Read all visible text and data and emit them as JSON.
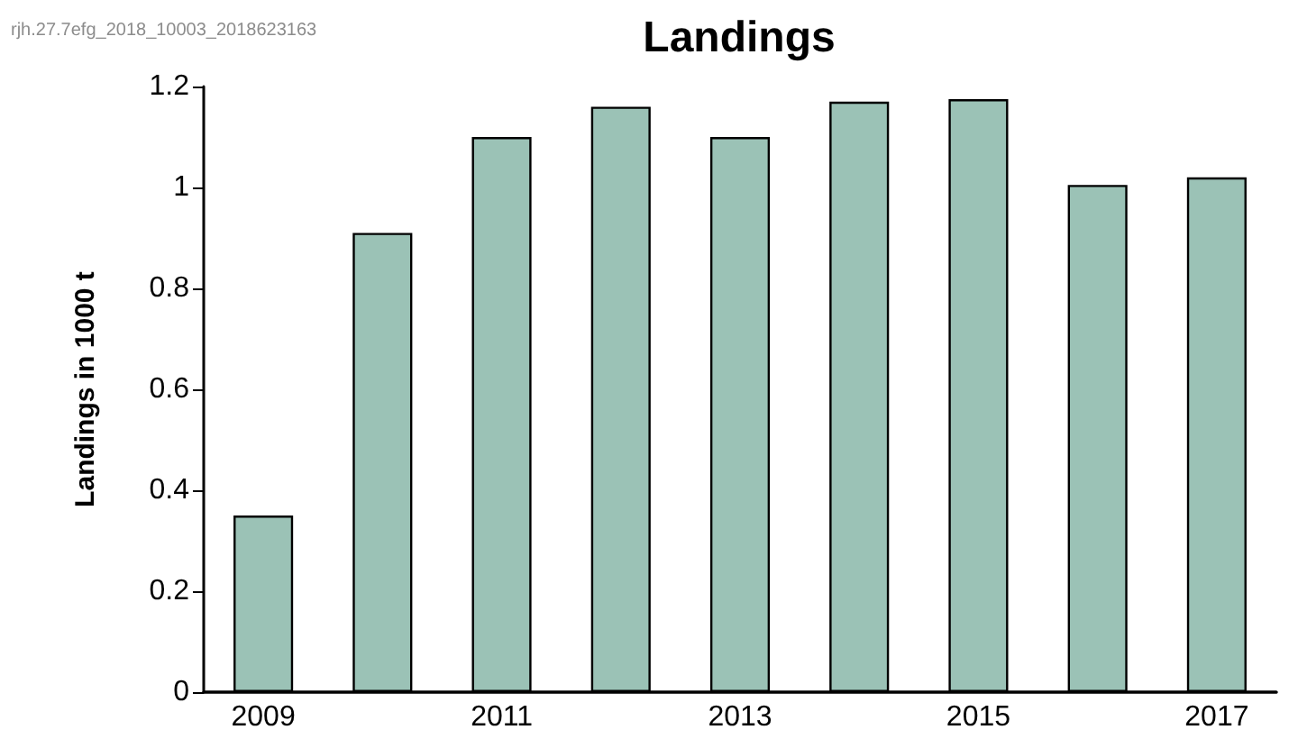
{
  "chart_data": {
    "type": "bar",
    "title": "Landings",
    "ylabel": "Landings in 1000 t",
    "annotations": [
      "rjh.27.7efg_2018_10003_2018623163"
    ],
    "categories": [
      "2009",
      null,
      "2011",
      null,
      "2013",
      null,
      "2015",
      null,
      "2017"
    ],
    "values": [
      0.35,
      0.91,
      1.1,
      1.16,
      1.1,
      1.17,
      1.175,
      1.005,
      1.02
    ],
    "color": "#9bc2b6",
    "ylim": [
      0,
      1.2
    ],
    "yticks": [
      0,
      0.2,
      0.4,
      0.6,
      0.8,
      1,
      1.2
    ],
    "grid": false
  }
}
